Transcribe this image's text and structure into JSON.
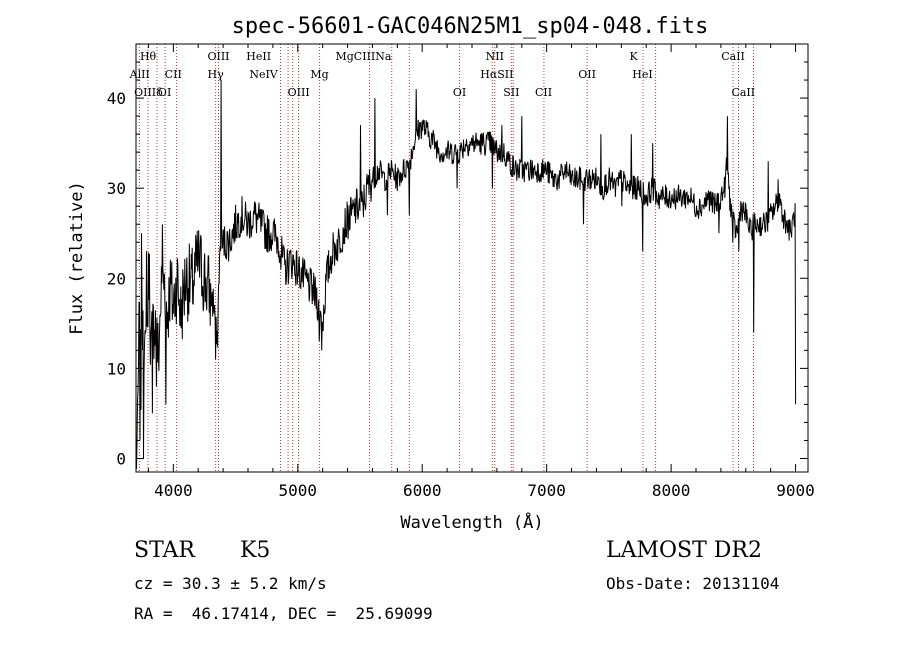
{
  "chart_data": {
    "type": "line",
    "title": "spec-56601-GAC046N25M1_sp04-048.fits",
    "xlabel": "Wavelength (Å)",
    "ylabel": "Flux (relative)",
    "xlim": [
      3700,
      9100
    ],
    "ylim": [
      -1.5,
      46
    ],
    "xticks": [
      4000,
      5000,
      6000,
      7000,
      8000,
      9000
    ],
    "yticks": [
      0,
      10,
      20,
      30,
      40
    ],
    "grid": false,
    "series": [
      {
        "color": "#000000",
        "anchors": [
          [
            3700,
            0
          ],
          [
            3712,
            2
          ],
          [
            3725,
            15
          ],
          [
            3740,
            8
          ],
          [
            3755,
            18
          ],
          [
            3770,
            10
          ],
          [
            3790,
            14
          ],
          [
            3805,
            22
          ],
          [
            3820,
            12
          ],
          [
            3850,
            16
          ],
          [
            3880,
            11
          ],
          [
            3900,
            18
          ],
          [
            3930,
            20
          ],
          [
            3950,
            16
          ],
          [
            3975,
            19
          ],
          [
            4000,
            17
          ],
          [
            4030,
            20
          ],
          [
            4060,
            16
          ],
          [
            4100,
            20
          ],
          [
            4150,
            19
          ],
          [
            4200,
            22
          ],
          [
            4250,
            20
          ],
          [
            4300,
            18
          ],
          [
            4330,
            17
          ],
          [
            4352,
            12
          ],
          [
            4370,
            22
          ],
          [
            4400,
            24
          ],
          [
            4450,
            24
          ],
          [
            4500,
            26
          ],
          [
            4550,
            27
          ],
          [
            4600,
            26
          ],
          [
            4650,
            27
          ],
          [
            4700,
            26
          ],
          [
            4750,
            25
          ],
          [
            4800,
            25
          ],
          [
            4850,
            24
          ],
          [
            4880,
            22
          ],
          [
            4900,
            21
          ],
          [
            4950,
            22
          ],
          [
            5000,
            21
          ],
          [
            5050,
            20
          ],
          [
            5100,
            19
          ],
          [
            5150,
            18
          ],
          [
            5180,
            16
          ],
          [
            5200,
            15
          ],
          [
            5230,
            20
          ],
          [
            5280,
            23
          ],
          [
            5330,
            24
          ],
          [
            5380,
            26
          ],
          [
            5430,
            27
          ],
          [
            5480,
            28
          ],
          [
            5520,
            28
          ],
          [
            5560,
            30
          ],
          [
            5600,
            31
          ],
          [
            5650,
            32
          ],
          [
            5700,
            31
          ],
          [
            5750,
            32
          ],
          [
            5800,
            31
          ],
          [
            5850,
            32
          ],
          [
            5900,
            33
          ],
          [
            5950,
            36
          ],
          [
            6000,
            37
          ],
          [
            6050,
            36
          ],
          [
            6100,
            35
          ],
          [
            6150,
            34
          ],
          [
            6200,
            34
          ],
          [
            6250,
            34
          ],
          [
            6300,
            34
          ],
          [
            6350,
            35
          ],
          [
            6400,
            35
          ],
          [
            6450,
            35
          ],
          [
            6500,
            35
          ],
          [
            6550,
            35
          ],
          [
            6600,
            34
          ],
          [
            6650,
            34
          ],
          [
            6700,
            33
          ],
          [
            6750,
            32
          ],
          [
            6800,
            32
          ],
          [
            6850,
            32
          ],
          [
            6900,
            32
          ],
          [
            6950,
            32
          ],
          [
            7000,
            32
          ],
          [
            7050,
            31
          ],
          [
            7100,
            31
          ],
          [
            7150,
            32
          ],
          [
            7200,
            31
          ],
          [
            7250,
            31
          ],
          [
            7300,
            31
          ],
          [
            7350,
            31
          ],
          [
            7400,
            31
          ],
          [
            7450,
            30
          ],
          [
            7500,
            31
          ],
          [
            7550,
            30
          ],
          [
            7600,
            31
          ],
          [
            7650,
            30
          ],
          [
            7700,
            30
          ],
          [
            7750,
            30
          ],
          [
            7800,
            29
          ],
          [
            7850,
            30
          ],
          [
            7900,
            29
          ],
          [
            7950,
            29
          ],
          [
            8000,
            29
          ],
          [
            8050,
            29
          ],
          [
            8100,
            29
          ],
          [
            8150,
            29
          ],
          [
            8200,
            28
          ],
          [
            8250,
            28
          ],
          [
            8300,
            29
          ],
          [
            8350,
            28
          ],
          [
            8400,
            29
          ],
          [
            8430,
            30
          ],
          [
            8450,
            33
          ],
          [
            8470,
            29
          ],
          [
            8500,
            26
          ],
          [
            8530,
            25
          ],
          [
            8560,
            28
          ],
          [
            8600,
            27
          ],
          [
            8640,
            25
          ],
          [
            8660,
            26
          ],
          [
            8700,
            26
          ],
          [
            8750,
            26
          ],
          [
            8800,
            27
          ],
          [
            8840,
            28
          ],
          [
            8870,
            29
          ],
          [
            8900,
            27
          ],
          [
            8930,
            26
          ],
          [
            8960,
            25
          ],
          [
            8990,
            27
          ],
          [
            9000,
            27
          ]
        ],
        "spikes": [
          [
            3730,
            2
          ],
          [
            3745,
            25
          ],
          [
            3760,
            0
          ],
          [
            3785,
            23
          ],
          [
            3830,
            5
          ],
          [
            3865,
            8
          ],
          [
            3910,
            26
          ],
          [
            3940,
            6
          ],
          [
            4340,
            11
          ],
          [
            4385,
            42
          ],
          [
            4862,
            21
          ],
          [
            5170,
            13
          ],
          [
            5190,
            12
          ],
          [
            5505,
            37
          ],
          [
            5620,
            40
          ],
          [
            5720,
            27
          ],
          [
            5895,
            27
          ],
          [
            5950,
            41
          ],
          [
            6280,
            30
          ],
          [
            6563,
            30
          ],
          [
            6640,
            37
          ],
          [
            6800,
            38
          ],
          [
            7295,
            26
          ],
          [
            7435,
            36
          ],
          [
            7605,
            28
          ],
          [
            7680,
            36
          ],
          [
            7770,
            23
          ],
          [
            7850,
            35
          ],
          [
            8385,
            25
          ],
          [
            8450,
            38
          ],
          [
            8497,
            24
          ],
          [
            8542,
            23
          ],
          [
            8662,
            14
          ],
          [
            8780,
            33
          ],
          [
            8860,
            31
          ],
          [
            9000,
            6
          ]
        ]
      }
    ]
  },
  "line_labels_top": [
    {
      "text": "Hθ",
      "wl": 3797
    },
    {
      "text": "OIII",
      "wl": 4363
    },
    {
      "text": "HeII",
      "wl": 4686
    },
    {
      "text": "MgCIIINa",
      "wl": 5528
    },
    {
      "text": "NII",
      "wl": 6583
    },
    {
      "text": "K",
      "wl": 7699
    },
    {
      "text": "CaII",
      "wl": 8498
    }
  ],
  "line_labels_mid": [
    {
      "text": "AlII",
      "wl": 3730
    },
    {
      "text": "CII",
      "wl": 4000
    },
    {
      "text": "Hγ",
      "wl": 4340
    },
    {
      "text": "NeIV",
      "wl": 4725
    },
    {
      "text": "Mg",
      "wl": 5175
    },
    {
      "text": "HαSII",
      "wl": 6600
    },
    {
      "text": "OII",
      "wl": 7325
    },
    {
      "text": "HeI",
      "wl": 7770
    }
  ],
  "line_labels_low": [
    {
      "text": "OIIIδ",
      "wl": 3800
    },
    {
      "text": "OI",
      "wl": 3930
    },
    {
      "text": "OIII",
      "wl": 5007
    },
    {
      "text": "OI",
      "wl": 6300
    },
    {
      "text": "SII",
      "wl": 6716
    },
    {
      "text": "CII",
      "wl": 6975
    },
    {
      "text": "CaII",
      "wl": 8580
    }
  ],
  "line_marker_wl": [
    3727,
    3797,
    3869,
    3934,
    4026,
    4340,
    4363,
    4861,
    4922,
    4959,
    5007,
    5175,
    5577,
    5755,
    5896,
    6300,
    6563,
    6583,
    6716,
    6731,
    6978,
    7325,
    7774,
    7875,
    8498,
    8542,
    8662
  ],
  "footer": {
    "object_type": "STAR",
    "subclass": "K5",
    "survey": "LAMOST DR2",
    "cz": "cz = 30.3 ± 5.2 km/s",
    "obs_date": "Obs-Date: 20131104",
    "radec": "RA =  46.17414, DEC =  25.69099"
  }
}
